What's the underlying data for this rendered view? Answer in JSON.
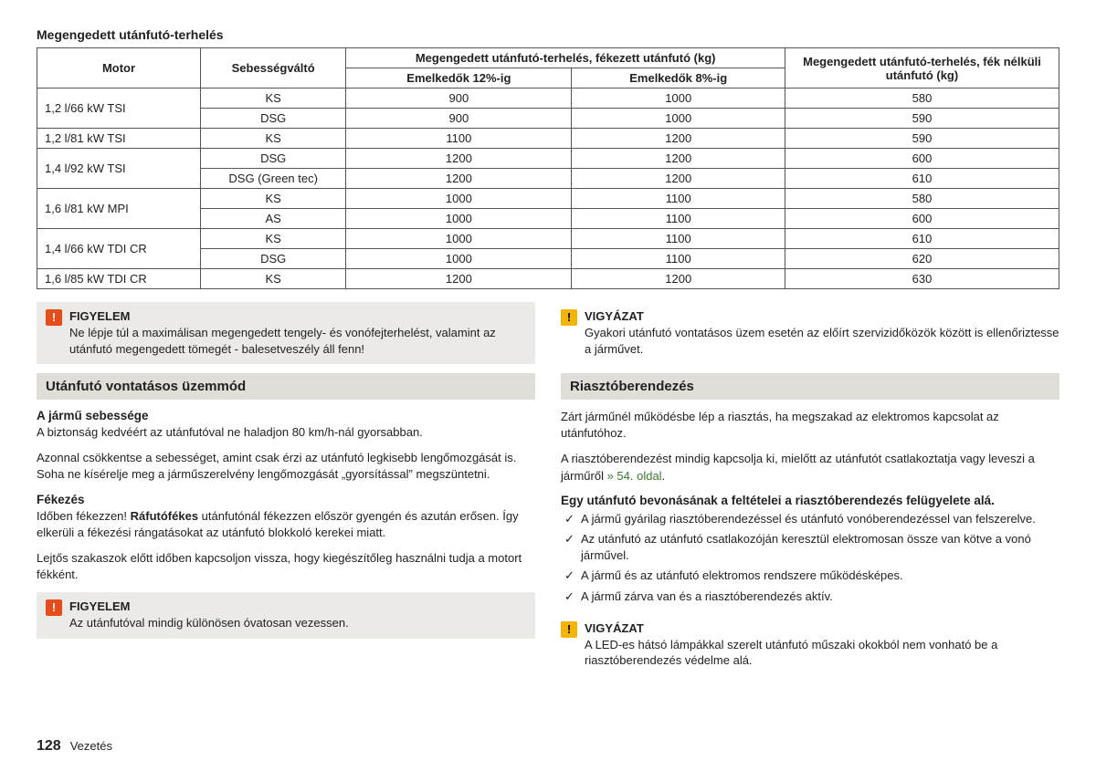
{
  "tableTitle": "Megengedett utánfutó-terhelés",
  "h": {
    "motor": "Motor",
    "gear": "Sebességváltó",
    "braked": "Megengedett utánfutó-terhelés, fékezett utánfutó (kg)",
    "c12": "Emelkedők 12%-ig",
    "c8": "Emelkedők 8%-ig",
    "unbraked": "Megengedett utánfutó-terhelés, fék nélküli utánfutó (kg)"
  },
  "r": [
    {
      "m": "1,2 l/66 kW TSI",
      "sub": [
        [
          "KS",
          "900",
          "1000",
          "580"
        ],
        [
          "DSG",
          "900",
          "1000",
          "590"
        ]
      ]
    },
    {
      "m": "1,2 l/81 kW TSI",
      "sub": [
        [
          "KS",
          "1100",
          "1200",
          "590"
        ]
      ]
    },
    {
      "m": "1,4 l/92 kW TSI",
      "sub": [
        [
          "DSG",
          "1200",
          "1200",
          "600"
        ],
        [
          "DSG (Green tec)",
          "1200",
          "1200",
          "610"
        ]
      ]
    },
    {
      "m": "1,6 l/81 kW MPI",
      "sub": [
        [
          "KS",
          "1000",
          "1100",
          "580"
        ],
        [
          "AS",
          "1000",
          "1100",
          "600"
        ]
      ]
    },
    {
      "m": "1,4 l/66 kW TDI CR",
      "sub": [
        [
          "KS",
          "1000",
          "1100",
          "610"
        ],
        [
          "DSG",
          "1000",
          "1100",
          "620"
        ]
      ]
    },
    {
      "m": "1,6 l/85 kW TDI CR",
      "sub": [
        [
          "KS",
          "1200",
          "1200",
          "630"
        ]
      ]
    }
  ],
  "a1t": "FIGYELEM",
  "a1b": "Ne lépje túl a maximálisan megengedett tengely- és vonófejterhelést, valamint az utánfutó megengedett tömegét - balesetveszély áll fenn!",
  "bar1": "Utánfutó vontatásos üzemmód",
  "s1": "A jármű sebessége",
  "p1": "A biztonság kedvéért az utánfutóval ne haladjon 80 km/h-nál gyorsabban.",
  "p2": "Azonnal csökkentse a sebességet, amint csak érzi az utánfutó legkisebb lengőmozgását is. Soha ne kísérelje meg a járműszerelvény lengőmozgását „gyorsítással” megszüntetni.",
  "s2": "Fékezés",
  "s2b": "Ráfutófékes",
  "p3a": "Időben fékezzen! ",
  "p3b": " utánfutónál fékezzen először gyengén és azután erősen. Így elkerüli a fékezési rángatásokat az utánfutó blokkoló kerekei miatt.",
  "p4": "Lejtős szakaszok előtt időben kapcsoljon vissza, hogy kiegészítőleg használni tudja a motort fékként.",
  "a2t": "FIGYELEM",
  "a2b": "Az utánfutóval mindig különösen óvatosan vezessen.",
  "a3t": "VIGYÁZAT",
  "a3b": "Gyakori utánfutó vontatásos üzem esetén az előírt szervizidőközök között is ellenőriztesse a járművet.",
  "bar2": "Riasztóberendezés",
  "p5": "Zárt járműnél működésbe lép a riasztás, ha megszakad az elektromos kapcsolat az utánfutóhoz.",
  "p6a": "A riasztóberendezést mindig kapcsolja ki, mielőtt az utánfutót csatlakoztatja vagy leveszi a járműről ",
  "p6l": "» 54. oldal",
  "s3": "Egy utánfutó bevonásának a feltételei a riasztóberendezés felügyelete alá.",
  "c": [
    "A jármű gyárilag riasztóberendezéssel és utánfutó vonóberendezéssel van felszerelve.",
    "Az utánfutó az utánfutó csatlakozóján keresztül elektromosan össze van kötve a vonó járművel.",
    "A jármű és az utánfutó elektromos rendszere működésképes.",
    "A jármű zárva van és a riasztóberendezés aktív."
  ],
  "a4t": "VIGYÁZAT",
  "a4b": "A LED-es hátsó lámpákkal szerelt utánfutó műszaki okokból nem vonható be a riasztóberendezés védelme alá.",
  "pg": "128",
  "sec": "Vezetés"
}
